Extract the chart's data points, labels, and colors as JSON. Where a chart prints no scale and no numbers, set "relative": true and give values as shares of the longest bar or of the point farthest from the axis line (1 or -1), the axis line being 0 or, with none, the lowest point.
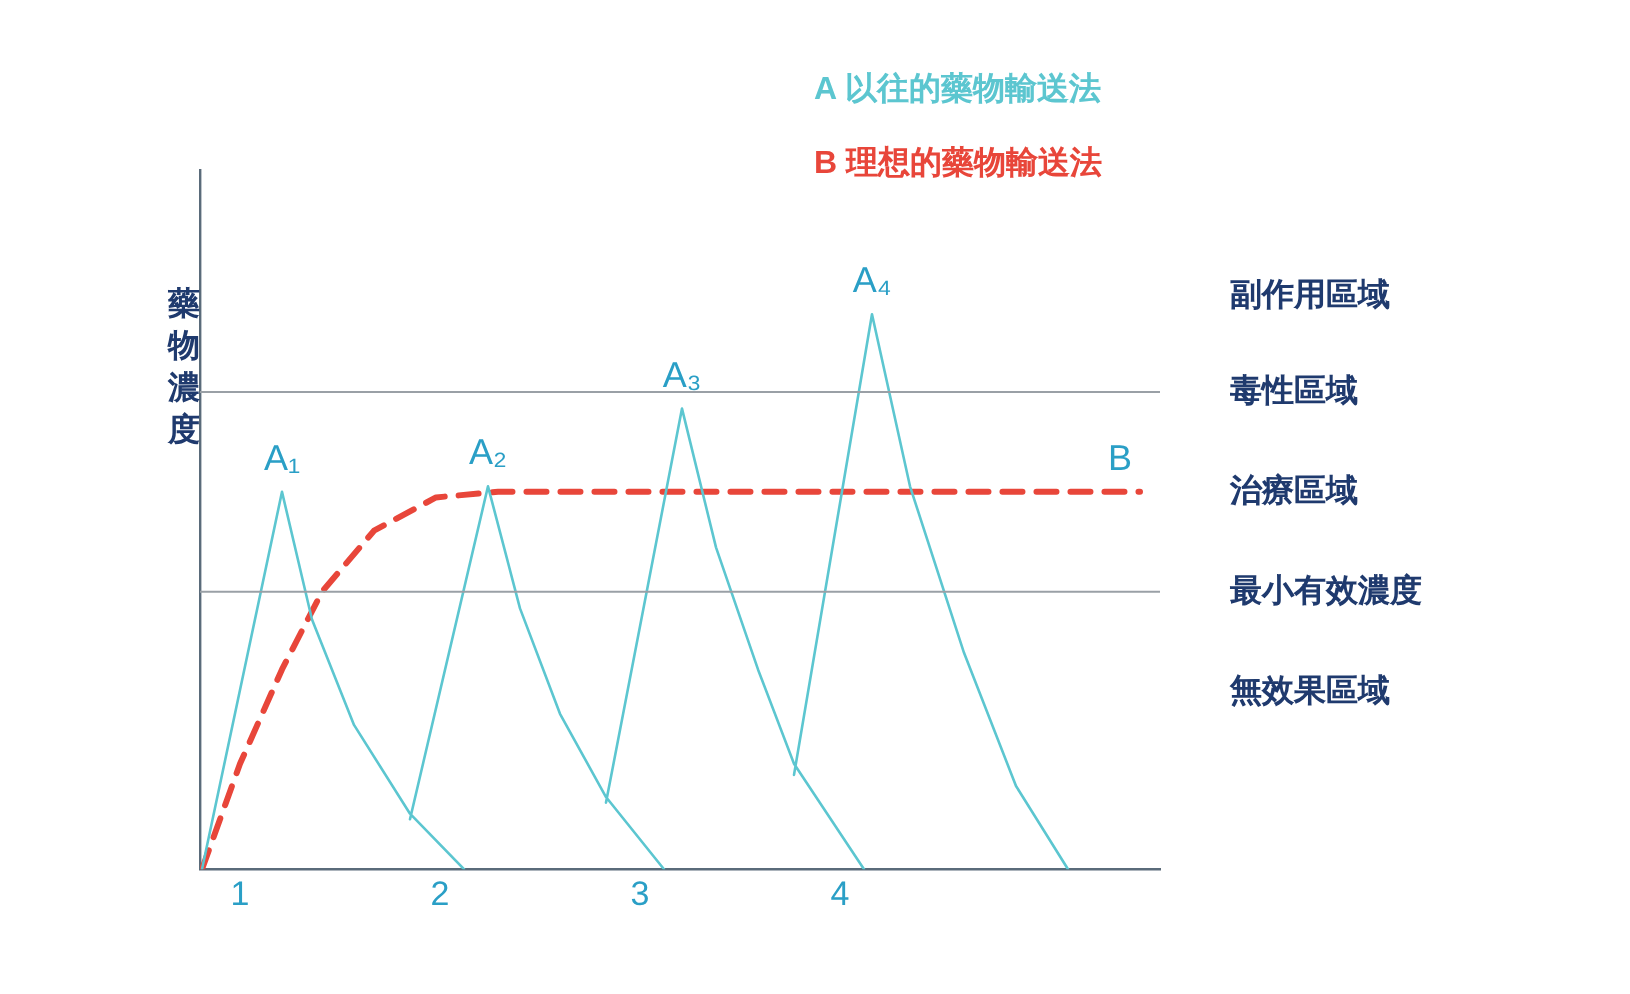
{
  "chart_data": {
    "type": "line",
    "relative": true,
    "ylabel": "藥物濃度",
    "xlim": [
      0.8,
      5.6
    ],
    "xticks": [
      1,
      2,
      3,
      4
    ],
    "grid": false,
    "legend": "top",
    "marker": "none",
    "series": [
      {
        "name": "A 以往的藥物輸送法",
        "color": "#5cc6d0",
        "line_style": "solid",
        "x": [
          0.81,
          1.21,
          1.36,
          1.57,
          1.85,
          2.12,
          null,
          1.85,
          2.24,
          2.4,
          2.6,
          2.83,
          3.12,
          null,
          2.83,
          3.21,
          3.38,
          3.59,
          3.77,
          4.12,
          null,
          3.77,
          4.16,
          4.35,
          4.62,
          4.88,
          5.14
        ],
        "values": [
          0,
          0.68,
          0.45,
          0.26,
          0.1,
          0,
          null,
          0.09,
          0.69,
          0.47,
          0.28,
          0.13,
          0,
          null,
          0.12,
          0.83,
          0.58,
          0.36,
          0.19,
          0,
          null,
          0.17,
          1,
          0.69,
          0.39,
          0.15,
          0
        ]
      },
      {
        "name": "B 理想的藥物輸送法",
        "color": "#e8463a",
        "line_style": "dashed",
        "x": [
          0.81,
          1,
          1.21,
          1.41,
          1.67,
          1.98,
          2.29,
          5.5
        ],
        "values": [
          0,
          0.19,
          0.36,
          0.5,
          0.61,
          0.67,
          0.68,
          0.68
        ]
      }
    ],
    "ref_lines": [
      {
        "axis": "y",
        "value": 0.86,
        "label": "毒性區域",
        "color": "#9aa0a6"
      },
      {
        "axis": "y",
        "value": 0.5,
        "label": "最小有效濃度",
        "color": "#9aa0a6"
      }
    ],
    "annotations": [
      "副作用區域",
      "治療區域",
      "無效果區域",
      {
        "text": "A₁",
        "x": 1.21,
        "y": 0.68
      },
      {
        "text": "A₂",
        "x": 2.24,
        "y": 0.69
      },
      {
        "text": "A₃",
        "x": 3.21,
        "y": 0.83
      },
      {
        "text": "A₄",
        "x": 4.16,
        "y": 1
      },
      {
        "text": "B",
        "x": 5.4,
        "y": 0.68
      }
    ]
  }
}
